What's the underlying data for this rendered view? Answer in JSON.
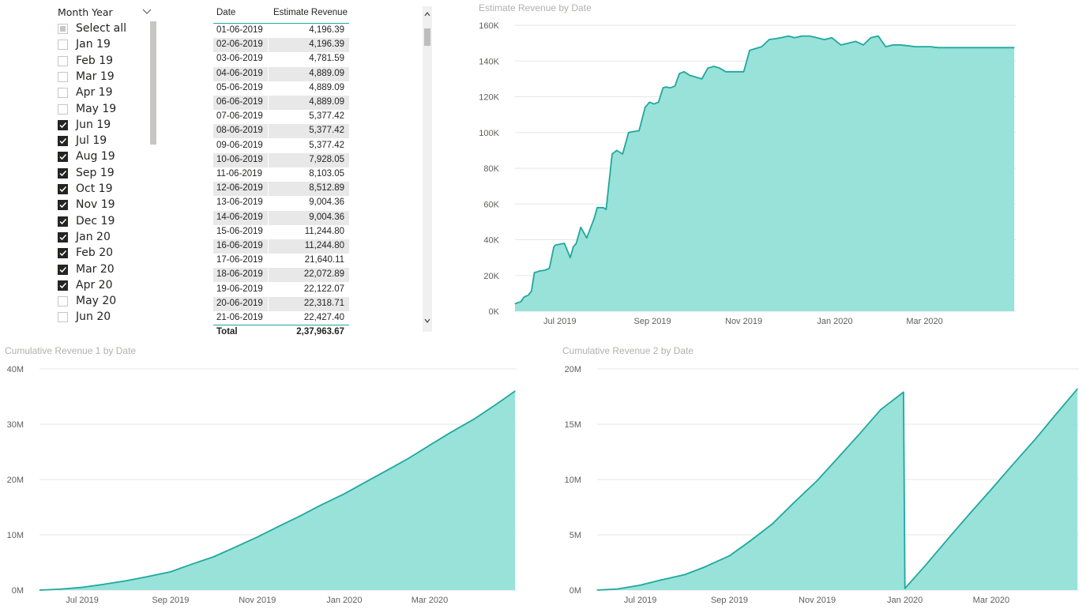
{
  "slicer": {
    "title": "Month Year",
    "items": [
      {
        "label": "Select all",
        "state": "partial"
      },
      {
        "label": "Jan 19",
        "state": "unchecked"
      },
      {
        "label": "Feb 19",
        "state": "unchecked"
      },
      {
        "label": "Mar 19",
        "state": "unchecked"
      },
      {
        "label": "Apr 19",
        "state": "unchecked"
      },
      {
        "label": "May 19",
        "state": "unchecked"
      },
      {
        "label": "Jun 19",
        "state": "checked"
      },
      {
        "label": "Jul 19",
        "state": "checked"
      },
      {
        "label": "Aug 19",
        "state": "checked"
      },
      {
        "label": "Sep 19",
        "state": "checked"
      },
      {
        "label": "Oct 19",
        "state": "checked"
      },
      {
        "label": "Nov 19",
        "state": "checked"
      },
      {
        "label": "Dec 19",
        "state": "checked"
      },
      {
        "label": "Jan 20",
        "state": "checked"
      },
      {
        "label": "Feb 20",
        "state": "checked"
      },
      {
        "label": "Mar 20",
        "state": "checked"
      },
      {
        "label": "Apr 20",
        "state": "checked"
      },
      {
        "label": "May 20",
        "state": "unchecked"
      },
      {
        "label": "Jun 20",
        "state": "unchecked"
      }
    ]
  },
  "table": {
    "headers": {
      "date": "Date",
      "value": "Estimate Revenue"
    },
    "rows": [
      {
        "date": "01-06-2019",
        "value": "4,196.39"
      },
      {
        "date": "02-06-2019",
        "value": "4,196.39"
      },
      {
        "date": "03-06-2019",
        "value": "4,781.59"
      },
      {
        "date": "04-06-2019",
        "value": "4,889.09"
      },
      {
        "date": "05-06-2019",
        "value": "4,889.09"
      },
      {
        "date": "06-06-2019",
        "value": "4,889.09"
      },
      {
        "date": "07-06-2019",
        "value": "5,377.42"
      },
      {
        "date": "08-06-2019",
        "value": "5,377.42"
      },
      {
        "date": "09-06-2019",
        "value": "5,377.42"
      },
      {
        "date": "10-06-2019",
        "value": "7,928.05"
      },
      {
        "date": "11-06-2019",
        "value": "8,103.05"
      },
      {
        "date": "12-06-2019",
        "value": "8,512.89"
      },
      {
        "date": "13-06-2019",
        "value": "9,004.36"
      },
      {
        "date": "14-06-2019",
        "value": "9,004.36"
      },
      {
        "date": "15-06-2019",
        "value": "11,244.80"
      },
      {
        "date": "16-06-2019",
        "value": "11,244.80"
      },
      {
        "date": "17-06-2019",
        "value": "21,640.11"
      },
      {
        "date": "18-06-2019",
        "value": "22,072.89"
      },
      {
        "date": "19-06-2019",
        "value": "22,122.07"
      },
      {
        "date": "20-06-2019",
        "value": "22,318.71"
      },
      {
        "date": "21-06-2019",
        "value": "22,427.40"
      }
    ],
    "total_label": "Total",
    "total_value": "2,37,963.67"
  },
  "colors": {
    "series_line": "#1fa89d",
    "series_fill": "#98e2da",
    "gridline": "#e6e6e6",
    "title": "#b3b0ad",
    "axis_text": "#605e5c"
  },
  "chart_data": [
    {
      "type": "area",
      "title": "Estimate Revenue by Date",
      "ylim": [
        0,
        160000
      ],
      "y_ticks": [
        0,
        20000,
        40000,
        60000,
        80000,
        100000,
        120000,
        140000,
        160000
      ],
      "y_tick_labels": [
        "0K",
        "20K",
        "40K",
        "60K",
        "80K",
        "100K",
        "120K",
        "140K",
        "160K"
      ],
      "x_ticks": [
        {
          "date": "2019-07-01",
          "label": "Jul 2019"
        },
        {
          "date": "2019-09-01",
          "label": "Sep 2019"
        },
        {
          "date": "2019-11-01",
          "label": "Nov 2019"
        },
        {
          "date": "2020-01-01",
          "label": "Jan 2020"
        },
        {
          "date": "2020-03-01",
          "label": "Mar 2020"
        }
      ],
      "xlim": [
        "2019-06-01",
        "2020-04-30"
      ],
      "grid": true,
      "series": [
        {
          "x": [
            "2019-06-01",
            "2019-06-05",
            "2019-06-07",
            "2019-06-10",
            "2019-06-12",
            "2019-06-14",
            "2019-06-16",
            "2019-06-17",
            "2019-06-21",
            "2019-06-24",
            "2019-06-27",
            "2019-06-28",
            "2019-07-04",
            "2019-07-08",
            "2019-07-10",
            "2019-07-12",
            "2019-07-15",
            "2019-07-19",
            "2019-07-24",
            "2019-07-26",
            "2019-07-30",
            "2019-08-01",
            "2019-08-05",
            "2019-08-08",
            "2019-08-12",
            "2019-08-16",
            "2019-08-19",
            "2019-08-23",
            "2019-08-27",
            "2019-08-30",
            "2019-09-02",
            "2019-09-05",
            "2019-09-08",
            "2019-09-10",
            "2019-09-13",
            "2019-09-16",
            "2019-09-19",
            "2019-09-22",
            "2019-09-26",
            "2019-09-30",
            "2019-10-04",
            "2019-10-08",
            "2019-10-12",
            "2019-10-16",
            "2019-10-20",
            "2019-10-24",
            "2019-10-28",
            "2019-11-01",
            "2019-11-05",
            "2019-11-09",
            "2019-11-13",
            "2019-11-18",
            "2019-11-22",
            "2019-11-26",
            "2019-12-01",
            "2019-12-05",
            "2019-12-10",
            "2019-12-15",
            "2019-12-20",
            "2019-12-25",
            "2019-12-30",
            "2020-01-05",
            "2020-01-10",
            "2020-01-15",
            "2020-01-20",
            "2020-01-25",
            "2020-01-30",
            "2020-02-04",
            "2020-02-09",
            "2020-02-14",
            "2020-02-19",
            "2020-02-24",
            "2020-02-29",
            "2020-03-05",
            "2020-03-10",
            "2020-03-15",
            "2020-03-20",
            "2020-03-25",
            "2020-03-30",
            "2020-04-04",
            "2020-04-09",
            "2020-04-14",
            "2020-04-19",
            "2020-04-24",
            "2020-04-30"
          ],
          "values": [
            4196,
            5377,
            7928,
            9004,
            11245,
            21640,
            22073,
            22427,
            23000,
            24000,
            36000,
            37000,
            38000,
            30000,
            36000,
            38000,
            47000,
            41000,
            52000,
            58000,
            58000,
            57000,
            88000,
            90000,
            88000,
            100000,
            100500,
            101000,
            114000,
            117000,
            116000,
            117000,
            125000,
            125500,
            125000,
            126000,
            133000,
            134000,
            132000,
            131000,
            130000,
            136000,
            137000,
            136000,
            134000,
            134000,
            134000,
            134000,
            146000,
            147000,
            148000,
            152000,
            152500,
            153000,
            154000,
            153000,
            154000,
            154000,
            153000,
            152000,
            153000,
            149000,
            150000,
            151000,
            149000,
            153000,
            154000,
            148000,
            149000,
            149000,
            148500,
            148000,
            148000,
            148000,
            147500,
            147500,
            147500,
            147500,
            147500,
            147500,
            147500,
            147500,
            147500,
            147500,
            147500
          ]
        }
      ]
    },
    {
      "type": "area",
      "title": "Cumulative Revenue 1 by Date",
      "ylim": [
        0,
        40000000
      ],
      "y_ticks": [
        0,
        10000000,
        20000000,
        30000000,
        40000000
      ],
      "y_tick_labels": [
        "0M",
        "10M",
        "20M",
        "30M",
        "40M"
      ],
      "x_ticks": [
        {
          "date": "2019-07-01",
          "label": "Jul 2019"
        },
        {
          "date": "2019-09-01",
          "label": "Sep 2019"
        },
        {
          "date": "2019-11-01",
          "label": "Nov 2019"
        },
        {
          "date": "2020-01-01",
          "label": "Jan 2020"
        },
        {
          "date": "2020-03-01",
          "label": "Mar 2020"
        }
      ],
      "xlim": [
        "2019-06-01",
        "2020-04-30"
      ],
      "grid": true,
      "series": [
        {
          "x": [
            "2019-06-01",
            "2019-06-15",
            "2019-07-01",
            "2019-07-15",
            "2019-08-01",
            "2019-08-15",
            "2019-09-01",
            "2019-09-15",
            "2019-10-01",
            "2019-10-15",
            "2019-11-01",
            "2019-11-15",
            "2019-12-01",
            "2019-12-15",
            "2020-01-01",
            "2020-01-15",
            "2020-02-01",
            "2020-02-15",
            "2020-03-01",
            "2020-03-15",
            "2020-04-01",
            "2020-04-15",
            "2020-04-30"
          ],
          "values": [
            0,
            150000,
            500000,
            1000000,
            1700000,
            2400000,
            3300000,
            4600000,
            6000000,
            7600000,
            9600000,
            11400000,
            13400000,
            15300000,
            17400000,
            19400000,
            21800000,
            23800000,
            26200000,
            28400000,
            30900000,
            33300000,
            36000000
          ]
        }
      ]
    },
    {
      "type": "area",
      "title": "Cumulative Revenue 2 by Date",
      "ylim": [
        0,
        20000000
      ],
      "y_ticks": [
        0,
        5000000,
        10000000,
        15000000,
        20000000
      ],
      "y_tick_labels": [
        "0M",
        "5M",
        "10M",
        "15M",
        "20M"
      ],
      "x_ticks": [
        {
          "date": "2019-07-01",
          "label": "Jul 2019"
        },
        {
          "date": "2019-09-01",
          "label": "Sep 2019"
        },
        {
          "date": "2019-11-01",
          "label": "Nov 2019"
        },
        {
          "date": "2020-01-01",
          "label": "Jan 2020"
        },
        {
          "date": "2020-03-01",
          "label": "Mar 2020"
        }
      ],
      "xlim": [
        "2019-06-01",
        "2020-04-30"
      ],
      "grid": true,
      "series": [
        {
          "x": [
            "2019-06-01",
            "2019-06-15",
            "2019-07-01",
            "2019-07-15",
            "2019-08-01",
            "2019-08-15",
            "2019-09-01",
            "2019-09-15",
            "2019-10-01",
            "2019-10-15",
            "2019-11-01",
            "2019-11-15",
            "2019-12-01",
            "2019-12-15",
            "2019-12-31",
            "2020-01-01",
            "2020-01-15",
            "2020-02-01",
            "2020-02-15",
            "2020-03-01",
            "2020-03-15",
            "2020-04-01",
            "2020-04-15",
            "2020-04-30"
          ],
          "values": [
            0,
            100000,
            450000,
            900000,
            1400000,
            2100000,
            3100000,
            4400000,
            6000000,
            7800000,
            9900000,
            11900000,
            14200000,
            16300000,
            17900000,
            150000,
            2200000,
            4800000,
            6900000,
            9100000,
            11200000,
            13700000,
            15900000,
            18200000
          ]
        }
      ]
    }
  ]
}
